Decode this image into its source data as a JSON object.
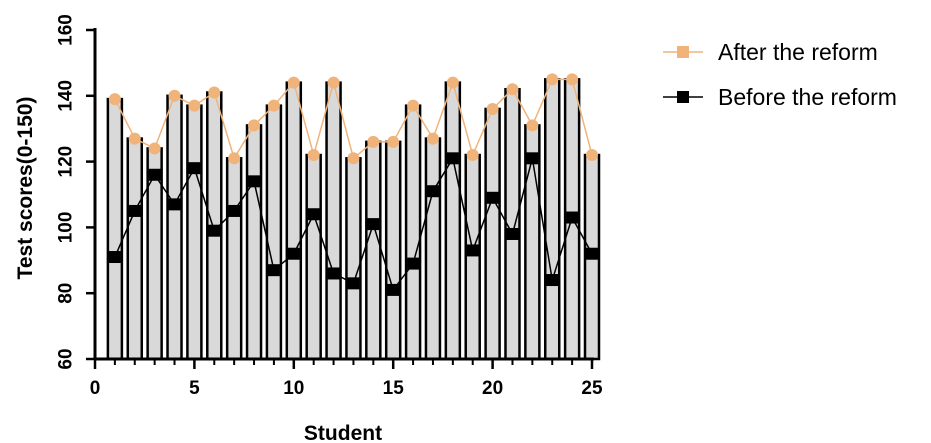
{
  "chart_data": {
    "type": "bar",
    "xlabel": "Student",
    "ylabel": "Test scores(0-150)",
    "xlim": [
      0,
      25
    ],
    "ylim": [
      60,
      160
    ],
    "xticks": [
      0,
      5,
      10,
      15,
      20,
      25
    ],
    "yticks": [
      60,
      80,
      100,
      120,
      140,
      160
    ],
    "x": [
      1,
      2,
      3,
      4,
      5,
      6,
      7,
      8,
      9,
      10,
      11,
      12,
      13,
      14,
      15,
      16,
      17,
      18,
      19,
      20,
      21,
      22,
      23,
      24,
      25
    ],
    "series": [
      {
        "name": "After the reform",
        "type": "bar+line",
        "marker": "circle",
        "color": "#f0b47a",
        "bar_color": "#d9d9d9",
        "values": [
          139,
          127,
          124,
          140,
          137,
          141,
          121,
          131,
          137,
          144,
          122,
          144,
          121,
          126,
          126,
          137,
          127,
          144,
          122,
          136,
          142,
          131,
          145,
          145,
          122
        ]
      },
      {
        "name": "Before the reform",
        "type": "line",
        "marker": "square",
        "color": "#000000",
        "values": [
          91,
          105,
          116,
          107,
          118,
          99,
          105,
          114,
          87,
          92,
          104,
          86,
          83,
          101,
          81,
          89,
          111,
          121,
          93,
          109,
          98,
          121,
          84,
          103,
          92
        ]
      }
    ],
    "legend_position": "top-right",
    "grid": false
  }
}
